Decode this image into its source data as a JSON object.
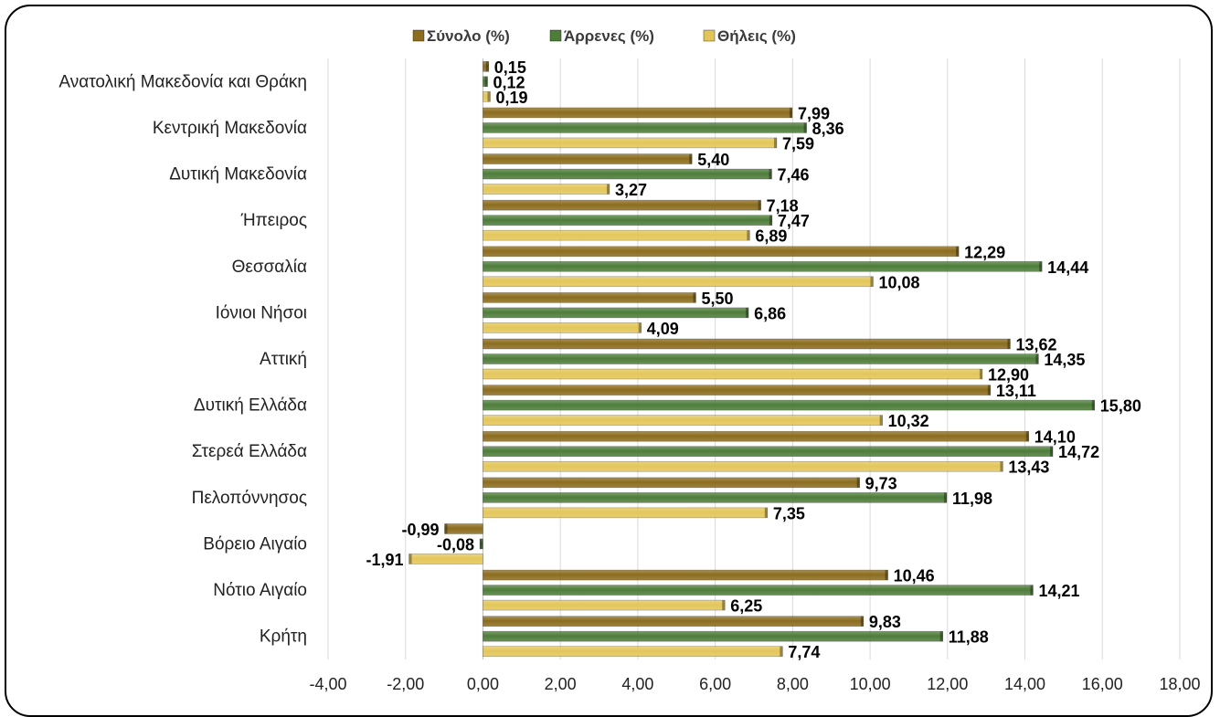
{
  "chart_data": {
    "type": "bar",
    "orientation": "horizontal",
    "categories": [
      "Ανατολική Μακεδονία και Θράκη",
      "Κεντρική Μακεδονία",
      "Δυτική Μακεδονία",
      "Ήπειρος",
      "Θεσσαλία",
      "Ιόνιοι Νήσοι",
      "Αττική",
      "Δυτική Ελλάδα",
      "Στερεά Ελλάδα",
      "Πελοπόννησος",
      "Βόρειο Αιγαίο",
      "Νότιο Αιγαίο",
      "Κρήτη"
    ],
    "series": [
      {
        "name": "Σύνολο (%)",
        "color": "#8c6d1f",
        "values": [
          0.15,
          7.99,
          5.4,
          7.18,
          12.29,
          5.5,
          13.62,
          13.11,
          14.1,
          9.73,
          -0.99,
          10.46,
          9.83
        ],
        "labels": [
          "0,15",
          "7,99",
          "5,40",
          "7,18",
          "12,29",
          "5,50",
          "13,62",
          "13,11",
          "14,10",
          "9,73",
          "-0,99",
          "10,46",
          "9,83"
        ]
      },
      {
        "name": "Άρρενες (%)",
        "color": "#4e7d3a",
        "values": [
          0.12,
          8.36,
          7.46,
          7.47,
          14.44,
          6.86,
          14.35,
          15.8,
          14.72,
          11.98,
          -0.08,
          14.21,
          11.88
        ],
        "labels": [
          "0,12",
          "8,36",
          "7,46",
          "7,47",
          "14,44",
          "6,86",
          "14,35",
          "15,80",
          "14,72",
          "11,98",
          "-0,08",
          "14,21",
          "11,88"
        ]
      },
      {
        "name": "Θήλεις (%)",
        "color": "#e3c65a",
        "values": [
          0.19,
          7.59,
          3.27,
          6.89,
          10.08,
          4.09,
          12.9,
          10.32,
          13.43,
          7.35,
          -1.91,
          6.25,
          7.74
        ],
        "labels": [
          "0,19",
          "7,59",
          "3,27",
          "6,89",
          "10,08",
          "4,09",
          "12,90",
          "10,32",
          "13,43",
          "7,35",
          "-1,91",
          "6,25",
          "7,74"
        ]
      }
    ],
    "x_ticks": [
      "-4,00",
      "-2,00",
      "0,00",
      "2,00",
      "4,00",
      "6,00",
      "8,00",
      "10,00",
      "12,00",
      "14,00",
      "16,00",
      "18,00"
    ],
    "xlim": [
      -4,
      18
    ],
    "grid": true,
    "legend_position": "top"
  }
}
